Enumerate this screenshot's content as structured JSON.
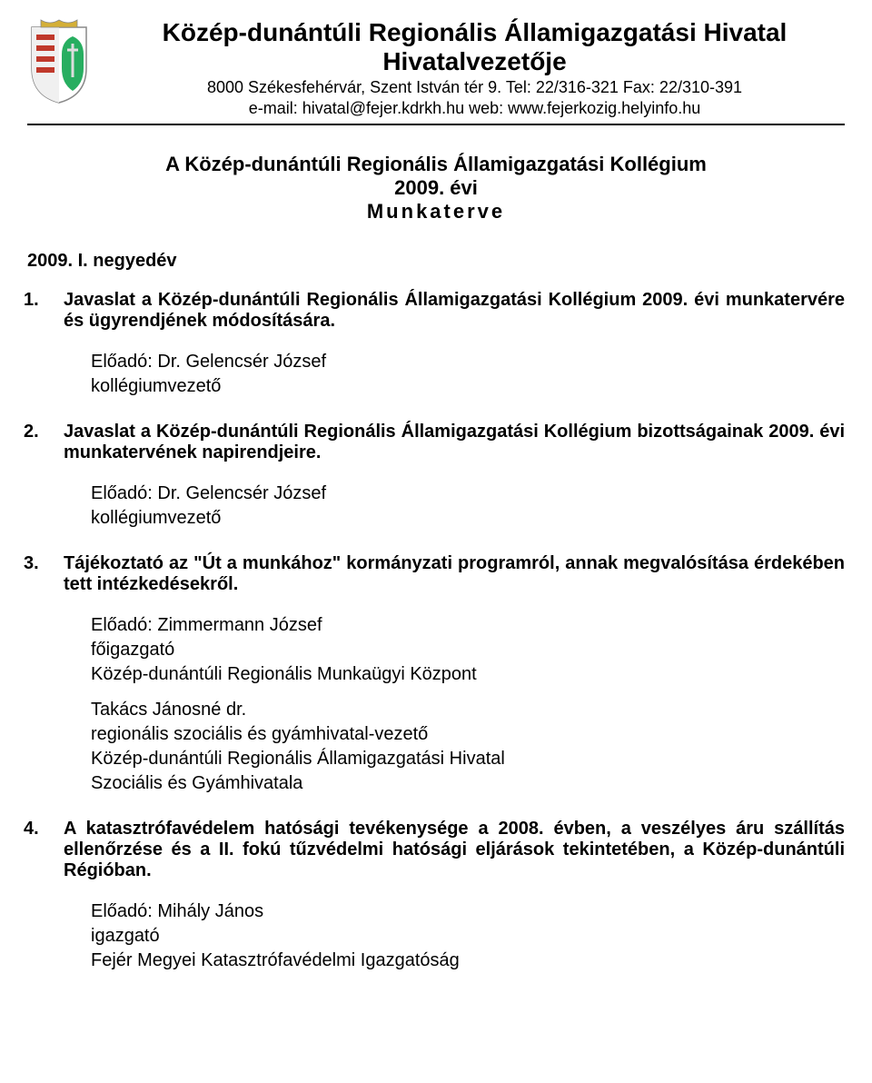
{
  "header": {
    "org_title": "Közép-dunántúli Regionális Államigazgatási Hivatal",
    "org_subtitle": "Hivatalvezetője",
    "address_line": "8000 Székesfehérvár, Szent István tér 9.   Tel: 22/316-321  Fax: 22/310-391",
    "contact_line": "e-mail: hivatal@fejer.kdrkh.hu      web: www.fejerkozig.helyinfo.hu"
  },
  "doc_title": {
    "line1": "A Közép-dunántúli Regionális Államigazgatási Kollégium",
    "line2": "2009. évi",
    "line3": "Munkaterve"
  },
  "section": "2009. I. negyedév",
  "items": [
    {
      "num": "1.",
      "title": "Javaslat a Közép-dunántúli Regionális Államigazgatási Kollégium 2009. évi munkatervére és ügyrendjének módosítására.",
      "presenters": [
        {
          "lines": [
            "Előadó: Dr. Gelencsér József",
            "kollégiumvezető"
          ]
        }
      ]
    },
    {
      "num": "2.",
      "title": "Javaslat a Közép-dunántúli Regionális Államigazgatási Kollégium bizottságainak 2009. évi munkatervének napirendjeire.",
      "presenters": [
        {
          "lines": [
            "Előadó: Dr. Gelencsér József",
            "kollégiumvezető"
          ]
        }
      ]
    },
    {
      "num": "3.",
      "title": "Tájékoztató az \"Út a munkához\" kormányzati programról, annak megvalósítása érdekében tett intézkedésekről.",
      "presenters": [
        {
          "lines": [
            "Előadó: Zimmermann József",
            "főigazgató",
            "Közép-dunántúli Regionális Munkaügyi Központ"
          ]
        },
        {
          "lines": [
            "Takács Jánosné dr.",
            "regionális szociális és gyámhivatal-vezető",
            "Közép-dunántúli Regionális Államigazgatási Hivatal",
            "Szociális és Gyámhivatala"
          ]
        }
      ]
    },
    {
      "num": "4.",
      "title": "A katasztrófavédelem hatósági tevékenysége a 2008. évben, a veszélyes áru szállítás ellenőrzése és a II. fokú tűzvédelmi hatósági eljárások tekintetében, a Közép-dunántúli Régióban.",
      "presenters": [
        {
          "lines": [
            "Előadó: Mihály János",
            "igazgató",
            "Fejér Megyei Katasztrófavédelmi Igazgatóság"
          ]
        }
      ]
    }
  ]
}
